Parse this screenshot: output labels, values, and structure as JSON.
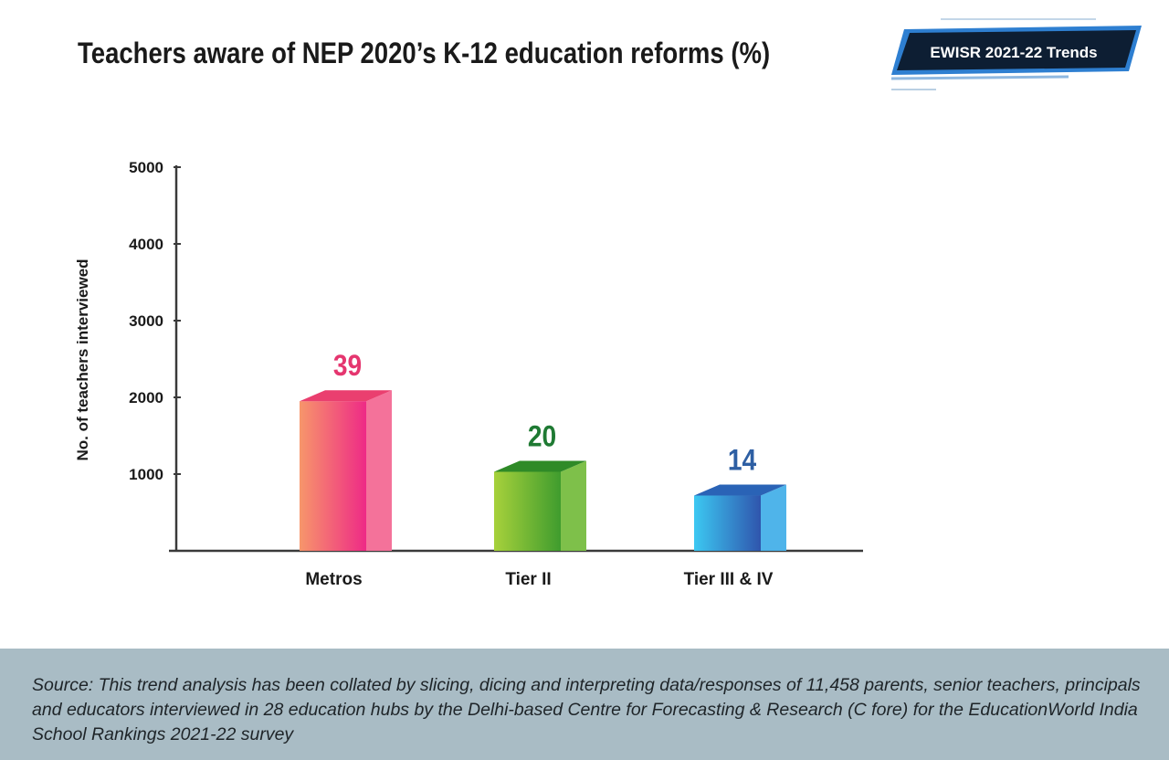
{
  "badge": {
    "label": "EWISR 2021-22 Trends"
  },
  "chart_data": {
    "type": "bar",
    "title": "Teachers aware of NEP 2020’s K-12 education reforms (%)",
    "xlabel": "",
    "ylabel": "No. of teachers interviewed",
    "ylim": [
      0,
      5000
    ],
    "yticks": [
      1000,
      2000,
      3000,
      4000,
      5000
    ],
    "ytick_labels": [
      "1000",
      "2000",
      "3000",
      "4000",
      "5000"
    ],
    "grid": false,
    "legend": "none",
    "categories": [
      "Metros",
      "Tier II",
      "Tier III & IV"
    ],
    "values": [
      1950,
      1030,
      720
    ],
    "data_labels": [
      "39",
      "20",
      "14"
    ],
    "colors": {
      "bars": [
        {
          "front_start": "#f7966b",
          "front_end": "#ee2a86",
          "side": "#f4729a",
          "top": "#ea3f6f"
        },
        {
          "front_start": "#a7d13b",
          "front_end": "#3f9c2e",
          "side": "#7ec04a",
          "top": "#2f8a27"
        },
        {
          "front_start": "#3cc8f2",
          "front_end": "#2f55ad",
          "side": "#4fb4ea",
          "top": "#2a63b6"
        }
      ],
      "labels": [
        "#e5366f",
        "#1f7a33",
        "#2e5fa3"
      ]
    }
  },
  "footer": {
    "source": "Source: This trend analysis has been collated by slicing, dicing and interpreting data/responses of 11,458 parents, senior teachers, principals and educators interviewed in 28 education hubs by the Delhi-based Centre for Forecasting & Research (C fore) for the EducationWorld India School Rankings 2021-22 survey"
  }
}
